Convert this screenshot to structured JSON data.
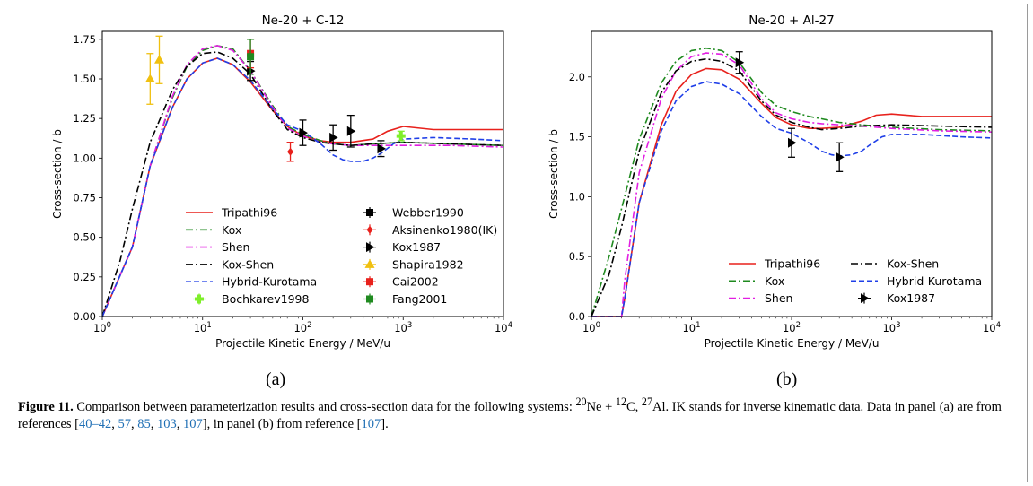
{
  "caption": {
    "figure_label": "Figure 11.",
    "text_1": "Comparison between parameterization results and cross-section data for the following systems:",
    "ne_mass": "20",
    "ne": "Ne",
    "plus": "+",
    "c_mass": "12",
    "c": "C,",
    "al_mass": "27",
    "al": "Al. IK",
    "text_2": "stands for inverse kinematic data. Data in panel (a) are from references [",
    "ref_a1": "40–42",
    "ref_a2": "57",
    "ref_a3": "85",
    "ref_a4": "103",
    "ref_a5": "107",
    "text_3": "], in panel (b) from reference",
    "open_bracket": "[",
    "ref_b": "107",
    "close": "].",
    "sep": ", "
  },
  "colors": {
    "Tripathi96": "#e8211c",
    "Kox": "#1f8a1f",
    "Shen": "#e21ee2",
    "Kox-Shen": "#000000",
    "Hybrid-Kurotama": "#1f3fe8",
    "Bochkarev1998": "#7fef2a",
    "Webber1990": "#000000",
    "Aksinenko1980(IK)": "#e8211c",
    "Kox1987": "#000000",
    "Shapira1982": "#f0c010",
    "Cai2002": "#e8211c",
    "Fang2001": "#1f8a1f"
  },
  "chart_data": [
    {
      "type": "line",
      "panel_label": "(a)",
      "title": "Ne-20 + C-12",
      "xlabel": "Projectile Kinetic Energy / MeV/u",
      "ylabel": "Cross-section / b",
      "xscale": "log",
      "xlim": [
        1,
        10000
      ],
      "ylim": [
        0,
        1.8
      ],
      "yticks": [
        0.0,
        0.25,
        0.5,
        0.75,
        1.0,
        1.25,
        1.5,
        1.75
      ],
      "ytick_labels": [
        "0.00",
        "0.25",
        "0.50",
        "0.75",
        "1.00",
        "1.25",
        "1.50",
        "1.75"
      ],
      "xticks": [
        1,
        10,
        100,
        1000,
        10000
      ],
      "xtick_base": "10",
      "xtick_exps": [
        "0",
        "1",
        "2",
        "3",
        "4"
      ],
      "grid": false,
      "legend": "lower-center",
      "series": [
        {
          "name": "Tripathi96",
          "style": "solid",
          "x": [
            1,
            2,
            3,
            5,
            7,
            10,
            14,
            20,
            30,
            50,
            70,
            100,
            150,
            200,
            300,
            500,
            700,
            1000,
            2000,
            5000,
            10000
          ],
          "y": [
            0,
            0.44,
            0.95,
            1.32,
            1.5,
            1.6,
            1.63,
            1.59,
            1.48,
            1.3,
            1.2,
            1.14,
            1.11,
            1.1,
            1.1,
            1.12,
            1.17,
            1.2,
            1.18,
            1.18,
            1.18
          ]
        },
        {
          "name": "Kox",
          "style": "dashdot",
          "x": [
            1,
            2,
            3,
            5,
            7,
            10,
            14,
            20,
            30,
            50,
            70,
            100,
            150,
            200,
            300,
            500,
            1000,
            3000,
            10000
          ],
          "y": [
            0,
            0.44,
            0.95,
            1.38,
            1.58,
            1.68,
            1.71,
            1.69,
            1.55,
            1.33,
            1.2,
            1.15,
            1.11,
            1.09,
            1.08,
            1.09,
            1.1,
            1.09,
            1.08
          ]
        },
        {
          "name": "Shen",
          "style": "dashdot",
          "x": [
            1,
            2,
            3,
            5,
            7,
            10,
            14,
            20,
            30,
            50,
            70,
            100,
            150,
            200,
            300,
            500,
            1000,
            3000,
            10000
          ],
          "y": [
            0,
            0.44,
            0.95,
            1.39,
            1.59,
            1.69,
            1.71,
            1.68,
            1.55,
            1.32,
            1.19,
            1.14,
            1.1,
            1.09,
            1.08,
            1.08,
            1.08,
            1.08,
            1.07
          ]
        },
        {
          "name": "Kox-Shen",
          "style": "dashdot",
          "x": [
            1,
            1.5,
            2,
            3,
            5,
            7,
            10,
            14,
            20,
            30,
            50,
            70,
            100,
            150,
            200,
            300,
            500,
            1000,
            3000,
            10000
          ],
          "y": [
            0,
            0.35,
            0.68,
            1.1,
            1.43,
            1.58,
            1.66,
            1.67,
            1.63,
            1.53,
            1.3,
            1.18,
            1.13,
            1.1,
            1.09,
            1.08,
            1.09,
            1.1,
            1.09,
            1.08
          ]
        },
        {
          "name": "Hybrid-Kurotama",
          "style": "dashed",
          "x": [
            1,
            2,
            3,
            5,
            7,
            10,
            14,
            20,
            30,
            50,
            70,
            100,
            150,
            200,
            250,
            300,
            400,
            500,
            600,
            800,
            1000,
            2000,
            5000,
            10000
          ],
          "y": [
            0,
            0.44,
            0.95,
            1.32,
            1.5,
            1.6,
            1.63,
            1.59,
            1.49,
            1.31,
            1.21,
            1.17,
            1.09,
            1.02,
            0.99,
            0.98,
            0.98,
            1.0,
            1.03,
            1.09,
            1.12,
            1.13,
            1.12,
            1.11
          ]
        }
      ],
      "points": [
        {
          "name": "Webber1990",
          "marker": "square",
          "x": [],
          "y": []
        },
        {
          "name": "Aksinenko1980(IK)",
          "marker": "diamond",
          "x": [
            75
          ],
          "y": [
            1.04
          ],
          "err": [
            0.06
          ]
        },
        {
          "name": "Kox1987",
          "marker": "triangle-right",
          "x": [
            30,
            100,
            200,
            300,
            600
          ],
          "y": [
            1.55,
            1.16,
            1.13,
            1.17,
            1.06
          ],
          "err": [
            0.06,
            0.08,
            0.08,
            0.1,
            0.05
          ]
        },
        {
          "name": "Shapira1982",
          "marker": "triangle-up",
          "x": [
            3,
            3.7
          ],
          "y": [
            1.5,
            1.62
          ],
          "err": [
            0.16,
            0.15
          ]
        },
        {
          "name": "Cai2002",
          "marker": "square",
          "x": [
            30
          ],
          "y": [
            1.66
          ],
          "err": [
            0.09
          ]
        },
        {
          "name": "Fang2001",
          "marker": "square",
          "x": [
            30
          ],
          "y": [
            1.64
          ],
          "err": [
            0.11
          ]
        },
        {
          "name": "Bochkarev1998",
          "marker": "plus-filled",
          "x": [
            950
          ],
          "y": [
            1.14
          ],
          "err": [
            0.03
          ]
        }
      ]
    },
    {
      "type": "line",
      "panel_label": "(b)",
      "title": "Ne-20 + Al-27",
      "xlabel": "Projectile Kinetic Energy / MeV/u",
      "ylabel": "Cross-section / b",
      "xscale": "log",
      "xlim": [
        1,
        10000
      ],
      "ylim": [
        0,
        2.38
      ],
      "yticks": [
        0.0,
        0.5,
        1.0,
        1.5,
        2.0
      ],
      "ytick_labels": [
        "0.0",
        "0.5",
        "1.0",
        "1.5",
        "2.0"
      ],
      "xticks": [
        1,
        10,
        100,
        1000,
        10000
      ],
      "xtick_base": "10",
      "xtick_exps": [
        "0",
        "1",
        "2",
        "3",
        "4"
      ],
      "grid": false,
      "legend": "lower-right",
      "series": [
        {
          "name": "Tripathi96",
          "style": "solid",
          "x": [
            1,
            2,
            2.15,
            3,
            5,
            7,
            10,
            14,
            20,
            30,
            50,
            70,
            100,
            150,
            200,
            300,
            500,
            700,
            1000,
            2000,
            5000,
            10000
          ],
          "y": [
            0,
            0,
            0.15,
            0.95,
            1.6,
            1.88,
            2.02,
            2.07,
            2.06,
            1.98,
            1.78,
            1.66,
            1.6,
            1.57,
            1.57,
            1.58,
            1.63,
            1.68,
            1.69,
            1.67,
            1.67,
            1.67
          ]
        },
        {
          "name": "Kox",
          "style": "dashdot",
          "x": [
            1,
            1.5,
            2,
            3,
            5,
            7,
            10,
            14,
            20,
            30,
            50,
            70,
            100,
            150,
            200,
            300,
            500,
            1000,
            3000,
            10000
          ],
          "y": [
            0,
            0.5,
            0.9,
            1.48,
            1.95,
            2.13,
            2.22,
            2.24,
            2.22,
            2.12,
            1.87,
            1.76,
            1.71,
            1.67,
            1.65,
            1.62,
            1.6,
            1.58,
            1.56,
            1.55
          ]
        },
        {
          "name": "Shen",
          "style": "dashdot",
          "x": [
            1,
            2,
            2.15,
            3,
            5,
            7,
            10,
            14,
            20,
            30,
            50,
            70,
            100,
            150,
            200,
            300,
            500,
            1000,
            3000,
            10000
          ],
          "y": [
            0,
            0,
            0.3,
            1.2,
            1.82,
            2.05,
            2.17,
            2.2,
            2.19,
            2.1,
            1.82,
            1.7,
            1.65,
            1.62,
            1.61,
            1.6,
            1.59,
            1.57,
            1.55,
            1.54
          ]
        },
        {
          "name": "Kox-Shen",
          "style": "dashdot",
          "x": [
            1,
            1.5,
            2,
            3,
            5,
            7,
            10,
            14,
            20,
            30,
            50,
            70,
            100,
            150,
            200,
            300,
            500,
            1000,
            3000,
            10000
          ],
          "y": [
            0,
            0.35,
            0.75,
            1.38,
            1.87,
            2.05,
            2.13,
            2.15,
            2.13,
            2.05,
            1.8,
            1.68,
            1.62,
            1.58,
            1.56,
            1.57,
            1.59,
            1.6,
            1.59,
            1.58
          ]
        },
        {
          "name": "Hybrid-Kurotama",
          "style": "dashed",
          "x": [
            1,
            2,
            2.15,
            3,
            5,
            7,
            10,
            14,
            20,
            30,
            50,
            70,
            100,
            150,
            200,
            250,
            300,
            400,
            500,
            600,
            800,
            1000,
            2000,
            5000,
            10000
          ],
          "y": [
            0,
            0,
            0.15,
            0.95,
            1.55,
            1.8,
            1.92,
            1.96,
            1.94,
            1.86,
            1.67,
            1.57,
            1.53,
            1.45,
            1.38,
            1.35,
            1.34,
            1.35,
            1.38,
            1.43,
            1.5,
            1.52,
            1.52,
            1.5,
            1.49
          ]
        }
      ],
      "points": [
        {
          "name": "Kox1987",
          "marker": "triangle-right",
          "x": [
            30,
            100,
            300
          ],
          "y": [
            2.12,
            1.45,
            1.33
          ],
          "err": [
            0.09,
            0.12,
            0.12
          ]
        }
      ]
    }
  ]
}
